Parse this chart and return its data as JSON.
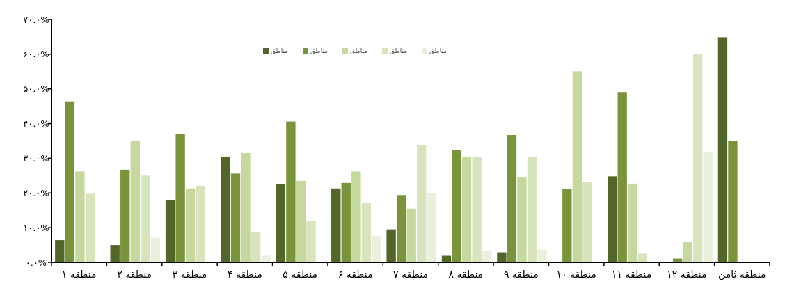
{
  "chart_data": {
    "type": "bar",
    "categories": [
      "منطقه ۱",
      "منطقه ۲",
      "منطقه ۳",
      "منطقه ۴",
      "منطقه ۵",
      "منطقه ۶",
      "منطقه ۷",
      "منطقه ۸",
      "منطقه ۹",
      "منطقه ۱۰",
      "منطقه ۱۱",
      "منطقه ۱۲",
      "منطقه ثامن"
    ],
    "series": [
      {
        "name": "مناطق",
        "color": "#536629",
        "values": [
          6.4,
          5.0,
          18.0,
          30.5,
          22.5,
          21.3,
          9.5,
          1.9,
          2.9,
          null,
          24.8,
          null,
          64.9
        ]
      },
      {
        "name": "مناطق",
        "color": "#7a943c",
        "values": [
          46.4,
          26.7,
          37.1,
          25.6,
          40.6,
          22.9,
          19.4,
          32.4,
          36.7,
          21.1,
          49.1,
          1.1,
          34.9
        ]
      },
      {
        "name": "مناطق",
        "color": "#c5d89d",
        "values": [
          26.2,
          34.9,
          21.3,
          31.5,
          23.5,
          26.2,
          15.5,
          30.3,
          24.6,
          55.1,
          22.7,
          5.8,
          null
        ]
      },
      {
        "name": "مناطق",
        "color": "#d8e4bc",
        "values": [
          19.8,
          25.0,
          22.1,
          8.7,
          11.9,
          17.1,
          33.8,
          30.3,
          30.5,
          23.1,
          2.5,
          60.0,
          null
        ]
      },
      {
        "name": "مناطق",
        "color": "#ebf0de",
        "values": [
          null,
          7.1,
          null,
          1.9,
          null,
          7.7,
          20.0,
          3.3,
          3.7,
          null,
          null,
          31.8,
          null
        ]
      }
    ],
    "ylim": [
      0,
      70
    ],
    "yticks": [
      {
        "value": 0,
        "label": "۰.۰%"
      },
      {
        "value": 10,
        "label": "۱۰.۰%"
      },
      {
        "value": 20,
        "label": "۲۰.۰%"
      },
      {
        "value": 30,
        "label": "۳۰.۰%"
      },
      {
        "value": 40,
        "label": "۴۰.۰%"
      },
      {
        "value": 50,
        "label": "۵۰.۰%"
      },
      {
        "value": 60,
        "label": "۶۰.۰%"
      },
      {
        "value": 70,
        "label": "۷۰.۰%"
      }
    ],
    "grid": false,
    "legend": "top"
  }
}
